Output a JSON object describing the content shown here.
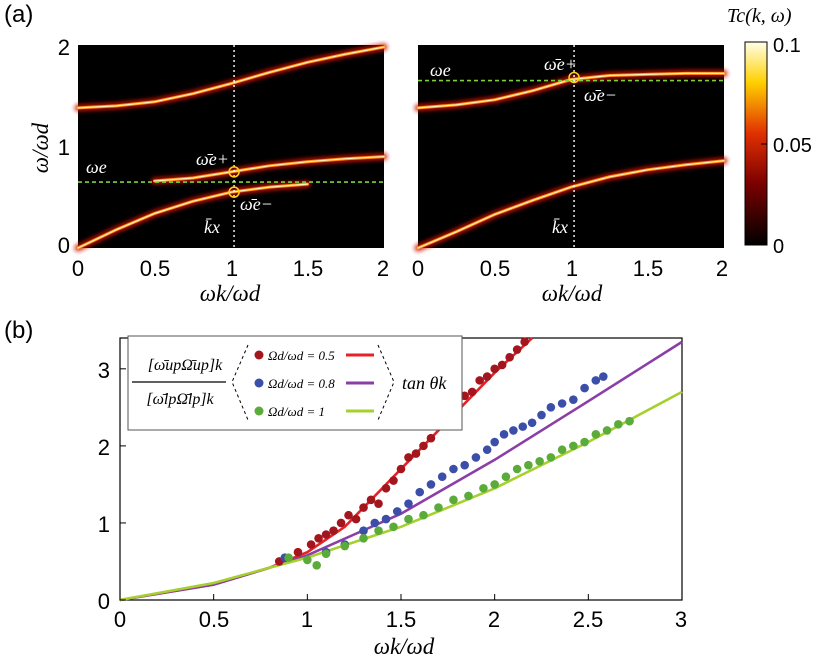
{
  "panel_labels": {
    "a": "(a)",
    "b": "(b)"
  },
  "chart_data": [
    {
      "type": "heatmap",
      "id": "panel-a-left",
      "xlabel": "ωk/ωd",
      "ylabel": "ω/ωd",
      "xlim": [
        0,
        2
      ],
      "ylim": [
        0,
        2
      ],
      "xticks": [
        "0",
        "0.5",
        "1",
        "1.5",
        "2"
      ],
      "yticks": [
        "0",
        "1",
        "2"
      ],
      "omega_e": 0.65,
      "k_x": 1.02,
      "annotations": {
        "omega_e": "ωe",
        "omega_e_plus": "ω̄e+",
        "omega_e_minus": "ω̄e−",
        "k_x": "k̄x"
      },
      "points": {
        "omega_e_plus": [
          1.02,
          0.75
        ],
        "omega_e_minus": [
          1.02,
          0.55
        ]
      },
      "branches": [
        {
          "name": "upper",
          "x": [
            0,
            0.25,
            0.5,
            0.75,
            1.0,
            1.25,
            1.5,
            1.75,
            2.0
          ],
          "y": [
            1.38,
            1.4,
            1.44,
            1.52,
            1.62,
            1.73,
            1.83,
            1.91,
            1.98
          ]
        },
        {
          "name": "middle",
          "x": [
            0.5,
            0.75,
            1.0,
            1.25,
            1.5,
            1.75,
            2.0
          ],
          "y": [
            0.66,
            0.69,
            0.75,
            0.81,
            0.85,
            0.88,
            0.9
          ]
        },
        {
          "name": "lower",
          "x": [
            0,
            0.25,
            0.5,
            0.75,
            1.0,
            1.25,
            1.5
          ],
          "y": [
            0.0,
            0.18,
            0.34,
            0.46,
            0.55,
            0.6,
            0.63
          ]
        }
      ]
    },
    {
      "type": "heatmap",
      "id": "panel-a-right",
      "xlabel": "ωk/ωd",
      "xlim": [
        0,
        2
      ],
      "ylim": [
        0,
        2
      ],
      "xticks": [
        "0",
        "0.5",
        "1",
        "1.5",
        "2"
      ],
      "omega_e": 1.65,
      "k_x": 1.02,
      "annotations": {
        "omega_e": "ωe",
        "omega_e_plus": "ω̄e+",
        "omega_e_minus": "ω̄e−",
        "k_x": "k̄x"
      },
      "points": {
        "omega_e_plus": [
          1.02,
          1.68
        ]
      },
      "branches": [
        {
          "name": "upper",
          "x": [
            0,
            0.25,
            0.5,
            0.75,
            1.0,
            1.25,
            1.5,
            1.75,
            2.0
          ],
          "y": [
            1.38,
            1.41,
            1.46,
            1.55,
            1.66,
            1.7,
            1.71,
            1.72,
            1.72
          ]
        },
        {
          "name": "lower",
          "x": [
            0,
            0.25,
            0.5,
            0.75,
            1.0,
            1.25,
            1.5,
            1.75,
            2.0
          ],
          "y": [
            0.0,
            0.16,
            0.33,
            0.47,
            0.6,
            0.7,
            0.77,
            0.82,
            0.86
          ]
        }
      ]
    },
    {
      "type": "colorbar",
      "id": "colorbar",
      "title": "Tc(k, ω)",
      "range": [
        0,
        0.1
      ],
      "ticks": [
        "0",
        "0.05",
        "0.1"
      ]
    },
    {
      "type": "scatter",
      "id": "panel-b",
      "xlabel": "ωk/ωd",
      "xlim": [
        0,
        3
      ],
      "ylim": [
        0,
        3.4
      ],
      "xticks": [
        "0",
        "0.5",
        "1",
        "1.5",
        "2",
        "2.5",
        "3"
      ],
      "yticks": [
        "0",
        "1",
        "2",
        "3"
      ],
      "legend": {
        "left_label_top": "[ω̄upΩ̄up]k",
        "left_label_bottom": "[ω̄lpΩ̄lp]k",
        "right_label": "tan θk",
        "entries": [
          "Ωd/ωd = 0.5",
          "Ωd/ωd = 0.8",
          "Ωd/ωd = 1"
        ]
      },
      "series": [
        {
          "name": "Ωd/ωd = 0.5",
          "color": "#a3161e",
          "line_color": "#e62229",
          "x": [
            0.85,
            0.95,
            1.02,
            1.06,
            1.1,
            1.14,
            1.18,
            1.22,
            1.26,
            1.3,
            1.34,
            1.38,
            1.42,
            1.46,
            1.5,
            1.54,
            1.58,
            1.62,
            1.66,
            1.72,
            1.76,
            1.8,
            1.84,
            1.88,
            1.92,
            1.96,
            2.0,
            2.04,
            2.08,
            2.12,
            2.16
          ],
          "y": [
            0.5,
            0.62,
            0.72,
            0.8,
            0.85,
            0.9,
            1.0,
            1.1,
            1.05,
            1.2,
            1.3,
            1.25,
            1.45,
            1.55,
            1.7,
            1.85,
            1.9,
            2.0,
            2.1,
            2.3,
            2.45,
            2.5,
            2.65,
            2.7,
            2.85,
            2.9,
            3.0,
            3.05,
            3.15,
            3.25,
            3.35
          ],
          "line_x": [
            0,
            0.5,
            0.8,
            1.0,
            1.2,
            1.4,
            1.6,
            1.8,
            2.0,
            2.2
          ],
          "line_y": [
            0,
            0.2,
            0.42,
            0.62,
            0.95,
            1.45,
            1.95,
            2.45,
            2.95,
            3.4
          ]
        },
        {
          "name": "Ωd/ωd = 0.8",
          "color": "#3b4ea8",
          "line_color": "#8b3ea6",
          "x": [
            0.88,
            1.1,
            1.2,
            1.3,
            1.36,
            1.42,
            1.48,
            1.54,
            1.6,
            1.66,
            1.72,
            1.78,
            1.84,
            1.9,
            1.96,
            2.0,
            2.05,
            2.1,
            2.15,
            2.2,
            2.25,
            2.3,
            2.36,
            2.42,
            2.48,
            2.54,
            2.58
          ],
          "y": [
            0.55,
            0.62,
            0.72,
            0.9,
            1.0,
            1.05,
            1.15,
            1.25,
            1.4,
            1.5,
            1.6,
            1.7,
            1.75,
            1.85,
            1.95,
            2.05,
            2.15,
            2.2,
            2.25,
            2.3,
            2.4,
            2.5,
            2.55,
            2.6,
            2.75,
            2.85,
            2.9
          ],
          "line_x": [
            0,
            0.5,
            0.8,
            1.0,
            1.5,
            2.0,
            2.5,
            3.0
          ],
          "line_y": [
            0,
            0.2,
            0.42,
            0.58,
            1.12,
            1.82,
            2.58,
            3.35
          ]
        },
        {
          "name": "Ωd/ωd = 1",
          "color": "#5bab3b",
          "line_color": "#a6d02e",
          "x": [
            0.9,
            1.0,
            1.05,
            1.1,
            1.2,
            1.3,
            1.38,
            1.46,
            1.54,
            1.62,
            1.7,
            1.78,
            1.86,
            1.94,
            2.0,
            2.06,
            2.12,
            2.18,
            2.24,
            2.3,
            2.36,
            2.42,
            2.48,
            2.54,
            2.6,
            2.66,
            2.72
          ],
          "y": [
            0.55,
            0.52,
            0.45,
            0.6,
            0.7,
            0.8,
            0.9,
            0.95,
            1.05,
            1.1,
            1.2,
            1.3,
            1.35,
            1.45,
            1.5,
            1.6,
            1.7,
            1.75,
            1.8,
            1.85,
            1.95,
            2.0,
            2.05,
            2.15,
            2.2,
            2.28,
            2.32
          ],
          "line_x": [
            0,
            0.5,
            0.8,
            1.0,
            1.5,
            2.0,
            2.5,
            3.0
          ],
          "line_y": [
            0,
            0.22,
            0.42,
            0.55,
            0.95,
            1.45,
            2.05,
            2.7
          ]
        }
      ]
    }
  ]
}
